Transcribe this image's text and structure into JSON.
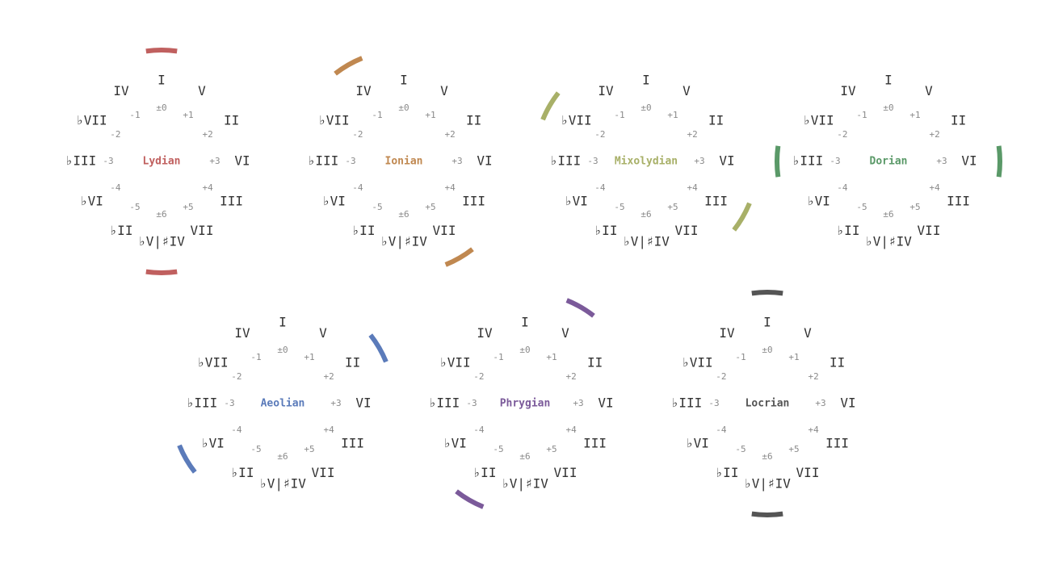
{
  "degree_labels": [
    "I",
    "V",
    "II",
    "VI",
    "III",
    "VII",
    "♭V|♯IV",
    "♭II",
    "♭VI",
    "♭III",
    "♭VII",
    "IV"
  ],
  "offset_labels": [
    "±0",
    "+1",
    "+2",
    "+3",
    "+4",
    "+5",
    "±6",
    "-5",
    "-4",
    "-3",
    "-2",
    "-1"
  ],
  "modes": [
    {
      "name": "Lydian",
      "color": "#c0605f",
      "arcs": [
        0,
        6
      ]
    },
    {
      "name": "Ionian",
      "color": "#c08850",
      "arcs": [
        -1,
        5
      ]
    },
    {
      "name": "Mixolydian",
      "color": "#a8b068",
      "arcs": [
        -2,
        4
      ]
    },
    {
      "name": "Dorian",
      "color": "#5a9968",
      "arcs": [
        -3,
        3
      ]
    },
    {
      "name": "Aeolian",
      "color": "#5b7bba",
      "arcs": [
        -4,
        2
      ]
    },
    {
      "name": "Phrygian",
      "color": "#7b5a9a",
      "arcs": [
        -5,
        1
      ]
    },
    {
      "name": "Locrian",
      "color": "#555555",
      "arcs": [
        0,
        6
      ]
    }
  ]
}
